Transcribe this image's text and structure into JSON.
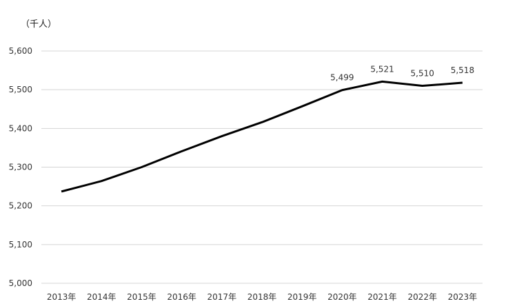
{
  "chart_data": {
    "type": "line",
    "unit_label": "（千人）",
    "categories": [
      "2013年",
      "2014年",
      "2015年",
      "2016年",
      "2017年",
      "2018年",
      "2019年",
      "2020年",
      "2021年",
      "2022年",
      "2023年"
    ],
    "series": [
      {
        "values": [
          5237,
          5264,
          5300,
          5341,
          5380,
          5416,
          5457,
          5499,
          5521,
          5510,
          5518
        ]
      }
    ],
    "data_labels": [
      {
        "index": 7,
        "text": "5,499"
      },
      {
        "index": 8,
        "text": "5,521"
      },
      {
        "index": 9,
        "text": "5,510"
      },
      {
        "index": 10,
        "text": "5,518"
      }
    ],
    "ylim": [
      5000,
      5600
    ],
    "yticks": [
      5000,
      5100,
      5200,
      5300,
      5400,
      5500,
      5600
    ],
    "ytick_labels": [
      "5,000",
      "5,100",
      "5,200",
      "5,300",
      "5,400",
      "5,500",
      "5,600"
    ],
    "grid": true,
    "colors": {
      "line": "#000000",
      "grid": "#d4d4d4"
    }
  }
}
